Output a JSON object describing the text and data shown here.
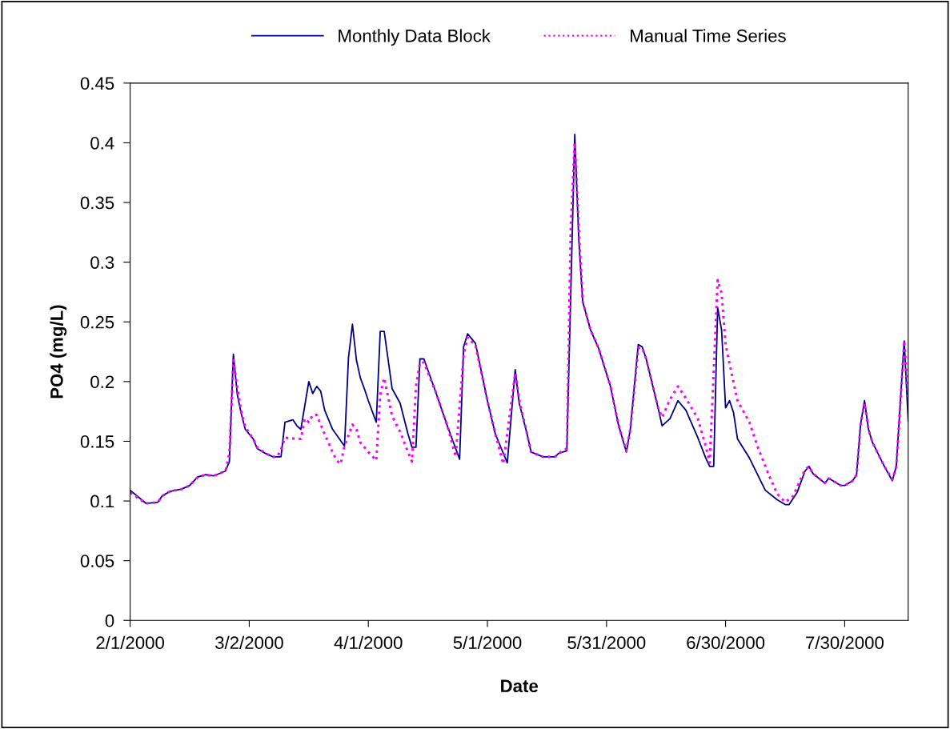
{
  "chart_data": {
    "type": "line",
    "xlabel": "Date",
    "ylabel": "PO4 (mg/L)",
    "xlim": [
      "2000-02-01",
      "2000-08-15"
    ],
    "ylim": [
      0,
      0.45
    ],
    "xticks": [
      {
        "value": "2000-02-01",
        "label": "2/1/2000"
      },
      {
        "value": "2000-03-02",
        "label": "3/2/2000"
      },
      {
        "value": "2000-04-01",
        "label": "4/1/2000"
      },
      {
        "value": "2000-05-01",
        "label": "5/1/2000"
      },
      {
        "value": "2000-05-31",
        "label": "5/31/2000"
      },
      {
        "value": "2000-06-30",
        "label": "6/30/2000"
      },
      {
        "value": "2000-07-30",
        "label": "7/30/2000"
      }
    ],
    "yticks": [
      0,
      0.05,
      0.1,
      0.15,
      0.2,
      0.25,
      0.3,
      0.35,
      0.4,
      0.45
    ],
    "grid": false,
    "legend": "top",
    "marker": "none",
    "series": [
      {
        "name": "Monthly Data Block",
        "color": "#000080",
        "line_style": "solid",
        "x": [
          "2000-02-01",
          "2000-02-05",
          "2000-02-08",
          "2000-02-09",
          "2000-02-11",
          "2000-02-14",
          "2000-02-16",
          "2000-02-18",
          "2000-02-20",
          "2000-02-22",
          "2000-02-25",
          "2000-02-26",
          "2000-02-27",
          "2000-02-28",
          "2000-02-29",
          "2000-03-01",
          "2000-03-03",
          "2000-03-04",
          "2000-03-06",
          "2000-03-08",
          "2000-03-10",
          "2000-03-11",
          "2000-03-13",
          "2000-03-14",
          "2000-03-15",
          "2000-03-17",
          "2000-03-18",
          "2000-03-19",
          "2000-03-20",
          "2000-03-21",
          "2000-03-23",
          "2000-03-26",
          "2000-03-27",
          "2000-03-28",
          "2000-03-29",
          "2000-03-30",
          "2000-03-31",
          "2000-04-01",
          "2000-04-03",
          "2000-04-04",
          "2000-04-05",
          "2000-04-07",
          "2000-04-09",
          "2000-04-11",
          "2000-04-12",
          "2000-04-13",
          "2000-04-14",
          "2000-04-15",
          "2000-04-18",
          "2000-04-21",
          "2000-04-24",
          "2000-04-25",
          "2000-04-26",
          "2000-04-28",
          "2000-05-01",
          "2000-05-03",
          "2000-05-06",
          "2000-05-08",
          "2000-05-09",
          "2000-05-11",
          "2000-05-12",
          "2000-05-15",
          "2000-05-18",
          "2000-05-19",
          "2000-05-21",
          "2000-05-23",
          "2000-05-24",
          "2000-05-25",
          "2000-05-27",
          "2000-05-29",
          "2000-06-01",
          "2000-06-03",
          "2000-06-05",
          "2000-06-06",
          "2000-06-08",
          "2000-06-09",
          "2000-06-10",
          "2000-06-13",
          "2000-06-14",
          "2000-06-16",
          "2000-06-18",
          "2000-06-20",
          "2000-06-23",
          "2000-06-25",
          "2000-06-26",
          "2000-06-27",
          "2000-06-28",
          "2000-06-29",
          "2000-06-30",
          "2000-07-01",
          "2000-07-02",
          "2000-07-03",
          "2000-07-06",
          "2000-07-10",
          "2000-07-13",
          "2000-07-15",
          "2000-07-16",
          "2000-07-18",
          "2000-07-20",
          "2000-07-21",
          "2000-07-22",
          "2000-07-25",
          "2000-07-26",
          "2000-07-29",
          "2000-07-30",
          "2000-08-01",
          "2000-08-02",
          "2000-08-03",
          "2000-08-04",
          "2000-08-05",
          "2000-08-06",
          "2000-08-09",
          "2000-08-11",
          "2000-08-12",
          "2000-08-14",
          "2000-08-15"
        ],
        "values": [
          0.109,
          0.098,
          0.099,
          0.104,
          0.108,
          0.11,
          0.113,
          0.12,
          0.122,
          0.121,
          0.125,
          0.133,
          0.223,
          0.189,
          0.173,
          0.16,
          0.152,
          0.144,
          0.14,
          0.137,
          0.137,
          0.166,
          0.168,
          0.163,
          0.16,
          0.2,
          0.19,
          0.196,
          0.192,
          0.176,
          0.16,
          0.146,
          0.22,
          0.248,
          0.218,
          0.203,
          0.194,
          0.184,
          0.166,
          0.242,
          0.242,
          0.194,
          0.182,
          0.156,
          0.145,
          0.145,
          0.219,
          0.219,
          0.191,
          0.162,
          0.135,
          0.229,
          0.24,
          0.232,
          0.184,
          0.156,
          0.132,
          0.21,
          0.182,
          0.156,
          0.141,
          0.137,
          0.137,
          0.14,
          0.142,
          0.407,
          0.32,
          0.267,
          0.243,
          0.228,
          0.196,
          0.164,
          0.141,
          0.16,
          0.231,
          0.229,
          0.219,
          0.178,
          0.163,
          0.169,
          0.184,
          0.176,
          0.153,
          0.136,
          0.129,
          0.129,
          0.262,
          0.243,
          0.178,
          0.184,
          0.174,
          0.152,
          0.136,
          0.109,
          0.101,
          0.097,
          0.097,
          0.107,
          0.125,
          0.129,
          0.123,
          0.115,
          0.119,
          0.113,
          0.113,
          0.117,
          0.122,
          0.164,
          0.184,
          0.16,
          0.149,
          0.129,
          0.117,
          0.129,
          0.234,
          0.167
        ]
      },
      {
        "name": "Manual Time Series",
        "color": "#ff00ff",
        "line_style": "dotted",
        "x": [
          "2000-02-01",
          "2000-02-05",
          "2000-02-08",
          "2000-02-09",
          "2000-02-11",
          "2000-02-14",
          "2000-02-16",
          "2000-02-18",
          "2000-02-20",
          "2000-02-22",
          "2000-02-25",
          "2000-02-26",
          "2000-02-27",
          "2000-02-28",
          "2000-02-29",
          "2000-03-01",
          "2000-03-03",
          "2000-03-04",
          "2000-03-06",
          "2000-03-08",
          "2000-03-09",
          "2000-03-10",
          "2000-03-11",
          "2000-03-14",
          "2000-03-15",
          "2000-03-16",
          "2000-03-17",
          "2000-03-18",
          "2000-03-19",
          "2000-03-20",
          "2000-03-21",
          "2000-03-23",
          "2000-03-24",
          "2000-03-25",
          "2000-03-26",
          "2000-03-28",
          "2000-03-29",
          "2000-03-30",
          "2000-04-01",
          "2000-04-03",
          "2000-04-04",
          "2000-04-05",
          "2000-04-06",
          "2000-04-07",
          "2000-04-09",
          "2000-04-11",
          "2000-04-12",
          "2000-04-13",
          "2000-04-14",
          "2000-04-15",
          "2000-04-18",
          "2000-04-21",
          "2000-04-23",
          "2000-04-25",
          "2000-04-26",
          "2000-04-28",
          "2000-05-01",
          "2000-05-03",
          "2000-05-05",
          "2000-05-08",
          "2000-05-09",
          "2000-05-11",
          "2000-05-12",
          "2000-05-15",
          "2000-05-18",
          "2000-05-19",
          "2000-05-21",
          "2000-05-22",
          "2000-05-23",
          "2000-05-24",
          "2000-05-25",
          "2000-05-27",
          "2000-05-29",
          "2000-06-01",
          "2000-06-03",
          "2000-06-05",
          "2000-06-06",
          "2000-06-08",
          "2000-06-09",
          "2000-06-10",
          "2000-06-13",
          "2000-06-14",
          "2000-06-16",
          "2000-06-18",
          "2000-06-20",
          "2000-06-23",
          "2000-06-25",
          "2000-06-26",
          "2000-06-28",
          "2000-06-29",
          "2000-06-30",
          "2000-07-01",
          "2000-07-03",
          "2000-07-06",
          "2000-07-08",
          "2000-07-11",
          "2000-07-13",
          "2000-07-15",
          "2000-07-17",
          "2000-07-19",
          "2000-07-20",
          "2000-07-21",
          "2000-07-22",
          "2000-07-25",
          "2000-07-26",
          "2000-07-29",
          "2000-07-30",
          "2000-08-01",
          "2000-08-02",
          "2000-08-03",
          "2000-08-04",
          "2000-08-05",
          "2000-08-06",
          "2000-08-09",
          "2000-08-11",
          "2000-08-12",
          "2000-08-14",
          "2000-08-15"
        ],
        "values": [
          0.107,
          0.098,
          0.099,
          0.104,
          0.108,
          0.11,
          0.113,
          0.12,
          0.122,
          0.121,
          0.125,
          0.14,
          0.218,
          0.195,
          0.175,
          0.162,
          0.152,
          0.145,
          0.14,
          0.137,
          0.137,
          0.143,
          0.153,
          0.152,
          0.152,
          0.169,
          0.166,
          0.172,
          0.172,
          0.164,
          0.156,
          0.141,
          0.134,
          0.131,
          0.146,
          0.164,
          0.16,
          0.149,
          0.141,
          0.134,
          0.189,
          0.203,
          0.187,
          0.171,
          0.158,
          0.141,
          0.133,
          0.196,
          0.216,
          0.216,
          0.191,
          0.162,
          0.137,
          0.222,
          0.237,
          0.23,
          0.184,
          0.156,
          0.131,
          0.207,
          0.185,
          0.156,
          0.141,
          0.137,
          0.137,
          0.14,
          0.144,
          0.33,
          0.4,
          0.33,
          0.267,
          0.243,
          0.228,
          0.196,
          0.164,
          0.142,
          0.16,
          0.228,
          0.228,
          0.219,
          0.178,
          0.17,
          0.185,
          0.196,
          0.186,
          0.169,
          0.146,
          0.132,
          0.285,
          0.274,
          0.231,
          0.215,
          0.184,
          0.166,
          0.146,
          0.121,
          0.106,
          0.099,
          0.104,
          0.119,
          0.126,
          0.129,
          0.123,
          0.115,
          0.119,
          0.113,
          0.113,
          0.117,
          0.122,
          0.164,
          0.182,
          0.16,
          0.149,
          0.129,
          0.118,
          0.129,
          0.234,
          0.186
        ]
      }
    ]
  }
}
